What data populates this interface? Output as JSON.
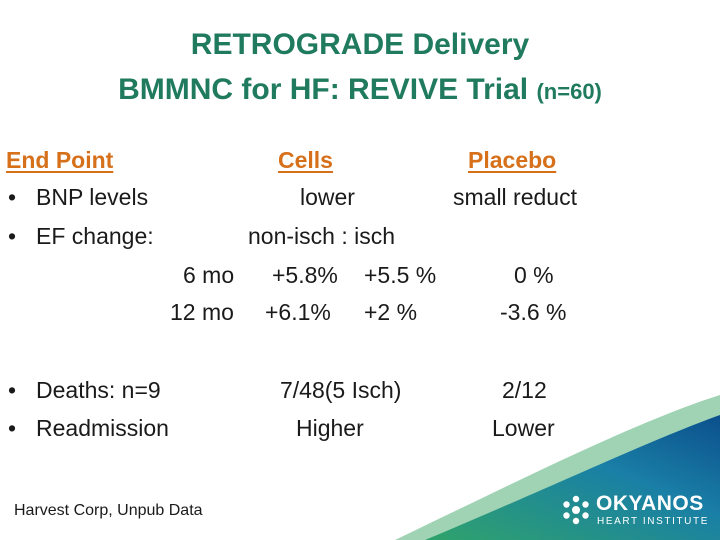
{
  "title": {
    "line1": "RETROGRADE Delivery",
    "line2_main": "BMMNC for HF: REVIVE Trial ",
    "line2_n": "(n=60)"
  },
  "headers": {
    "endpoint": "End Point",
    "cells": "Cells ",
    "placebo": "Placebo"
  },
  "rows": {
    "bnp": {
      "bullet": "•",
      "label": "BNP levels",
      "cells": "lower",
      "placebo": "small reduct"
    },
    "ef": {
      "bullet": "•",
      "label": "EF change:",
      "cells": "non-isch : isch"
    },
    "ef6": {
      "period": "6 mo",
      "nonisch": "+5.8%",
      "isch": "+5.5 %",
      "placebo": "0 %"
    },
    "ef12": {
      "period": "12 mo",
      "nonisch": "+6.1%",
      "isch": "+2 %",
      "placebo": "-3.6 %"
    },
    "deaths": {
      "bullet": "•",
      "label": "Deaths: n=9",
      "cells": "7/48(5 Isch)",
      "placebo": "2/12"
    },
    "readmission": {
      "bullet": "•",
      "label": "Readmission",
      "cells": "Higher",
      "placebo": "Lower"
    }
  },
  "footer": {
    "source": "Harvest Corp, Unpub Data"
  },
  "logo": {
    "name": "OKYANOS",
    "subtitle": "HEART INSTITUTE"
  },
  "colors": {
    "title": "#1f7a5e",
    "header": "#d6701a",
    "swoosh_dark": "#0b4f8c",
    "swoosh_green": "#2fa36b"
  }
}
